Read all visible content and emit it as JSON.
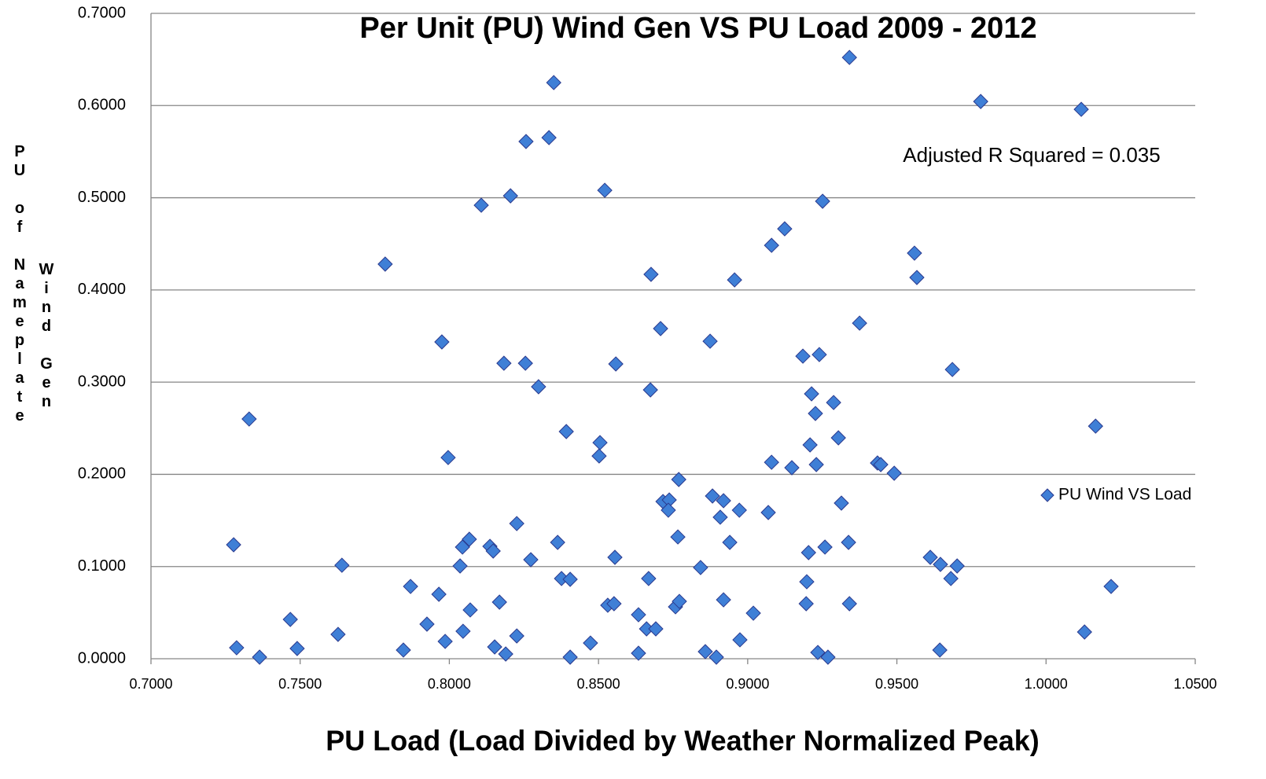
{
  "chart_data": {
    "type": "scatter",
    "title": "Per Unit (PU) Wind Gen VS PU Load 2009 - 2012",
    "xlabel": "PU Load  (Load Divided by Weather Normalized Peak)",
    "ylabel": [
      "PU of Nameplate",
      "Wind Gen"
    ],
    "annotation": "Adjusted R Squared = 0.035",
    "legend": "right",
    "grid": true,
    "xlim": [
      0.7,
      1.05
    ],
    "ylim": [
      0,
      0.7
    ],
    "xticks": [
      {
        "value": 0.7,
        "label": "0.7000"
      },
      {
        "value": 0.75,
        "label": "0.7500"
      },
      {
        "value": 0.8,
        "label": "0.8000"
      },
      {
        "value": 0.85,
        "label": "0.8500"
      },
      {
        "value": 0.9,
        "label": "0.9000"
      },
      {
        "value": 0.95,
        "label": "0.9500"
      },
      {
        "value": 1.0,
        "label": "1.0000"
      },
      {
        "value": 1.05,
        "label": "1.0500"
      }
    ],
    "yticks": [
      {
        "value": 0,
        "label": "0.0000"
      },
      {
        "value": 0.1,
        "label": "0.1000"
      },
      {
        "value": 0.2,
        "label": "0.2000"
      },
      {
        "value": 0.3,
        "label": "0.3000"
      },
      {
        "value": 0.4,
        "label": "0.4000"
      },
      {
        "value": 0.5,
        "label": "0.5000"
      },
      {
        "value": 0.6,
        "label": "0.6000"
      },
      {
        "value": 0.7,
        "label": "0.7000"
      }
    ],
    "x": [
      0.7277,
      0.7287,
      0.7329,
      0.7364,
      0.7467,
      0.749,
      0.7627,
      0.764,
      0.7785,
      0.7846,
      0.787,
      0.7925,
      0.7965,
      0.7975,
      0.7986,
      0.7996,
      0.8036,
      0.8044,
      0.8046,
      0.8067,
      0.807,
      0.8107,
      0.8136,
      0.8147,
      0.8152,
      0.8168,
      0.8183,
      0.8189,
      0.8205,
      0.8226,
      0.8226,
      0.8257,
      0.8255,
      0.8273,
      0.8299,
      0.8334,
      0.835,
      0.8363,
      0.8376,
      0.8392,
      0.8405,
      0.8405,
      0.8473,
      0.8505,
      0.8502,
      0.8521,
      0.8531,
      0.8552,
      0.8555,
      0.8558,
      0.8634,
      0.8634,
      0.8661,
      0.8668,
      0.8676,
      0.8674,
      0.8692,
      0.8708,
      0.8716,
      0.8737,
      0.8734,
      0.8758,
      0.8769,
      0.8766,
      0.8771,
      0.8842,
      0.8858,
      0.8874,
      0.8882,
      0.8895,
      0.8908,
      0.8919,
      0.8919,
      0.894,
      0.8956,
      0.8972,
      0.8974,
      0.9019,
      0.9069,
      0.908,
      0.908,
      0.9124,
      0.9148,
      0.9185,
      0.9196,
      0.9198,
      0.9204,
      0.9209,
      0.9214,
      0.9227,
      0.923,
      0.9235,
      0.924,
      0.9251,
      0.9259,
      0.9269,
      0.9288,
      0.9304,
      0.9314,
      0.9338,
      0.9341,
      0.9341,
      0.9375,
      0.9435,
      0.9446,
      0.9491,
      0.9559,
      0.9567,
      0.9612,
      0.9646,
      0.9644,
      0.9681,
      0.9686,
      0.9702,
      0.9781,
      1.0118,
      1.0129,
      1.0166,
      1.0218
    ],
    "series": [
      {
        "name": "PU Wind VS Load",
        "color": "#3f7fd6",
        "values": [
          0.1236,
          0.0119,
          0.26,
          0.0017,
          0.0426,
          0.0111,
          0.0264,
          0.1014,
          0.428,
          0.0094,
          0.0784,
          0.0375,
          0.0699,
          0.3436,
          0.0188,
          0.2182,
          0.1006,
          0.1211,
          0.0298,
          0.1296,
          0.0529,
          0.4919,
          0.1219,
          0.1168,
          0.0128,
          0.0614,
          0.3205,
          0.0051,
          0.5021,
          0.1466,
          0.0247,
          0.561,
          0.3205,
          0.1074,
          0.295,
          0.5652,
          0.6249,
          0.1262,
          0.087,
          0.2464,
          0.0861,
          0.0017,
          0.017,
          0.2344,
          0.2199,
          0.5081,
          0.058,
          0.0597,
          0.11,
          0.3197,
          0.0477,
          0.006,
          0.0324,
          0.087,
          0.4169,
          0.2916,
          0.0324,
          0.3581,
          0.1705,
          0.1722,
          0.1611,
          0.0563,
          0.1944,
          0.1321,
          0.0622,
          0.0989,
          0.0077,
          0.3444,
          0.1765,
          0.0017,
          0.1535,
          0.1714,
          0.0639,
          0.1262,
          0.4109,
          0.1611,
          0.0205,
          0.0494,
          0.1586,
          0.4484,
          0.2131,
          0.4663,
          0.2072,
          0.3282,
          0.0597,
          0.0835,
          0.1151,
          0.2319,
          0.2873,
          0.266,
          0.2106,
          0.0068,
          0.3299,
          0.4962,
          0.1211,
          0.0017,
          0.2779,
          0.2396,
          0.1688,
          0.1262,
          0.0597,
          0.6522,
          0.364,
          0.2123,
          0.2106,
          0.2012,
          0.4399,
          0.4135,
          0.11,
          0.1023,
          0.0094,
          0.087,
          0.3137,
          0.1006,
          0.6044,
          0.5959,
          0.029,
          0.2523,
          0.0784
        ]
      }
    ]
  }
}
